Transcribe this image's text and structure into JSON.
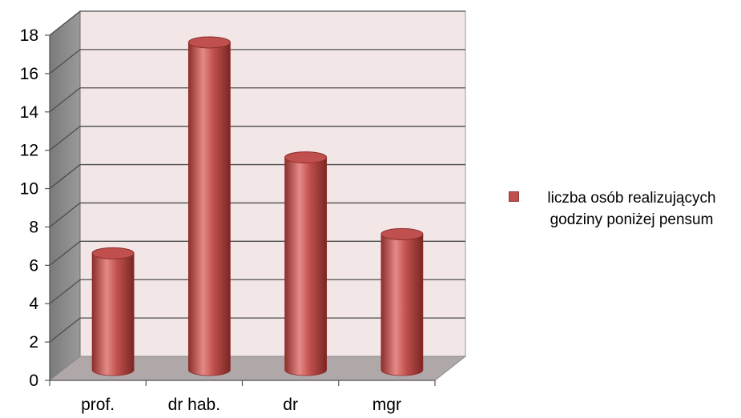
{
  "chart_data": {
    "type": "bar",
    "categories": [
      "prof.",
      "dr hab.",
      "dr",
      "mgr"
    ],
    "series": [
      {
        "name": "liczba osób realizujących godziny poniżej pensum",
        "values": [
          6,
          17,
          11,
          7
        ]
      }
    ],
    "title": "",
    "xlabel": "",
    "ylabel": "",
    "ylim": [
      0,
      18
    ],
    "yticks": [
      "0",
      "2",
      "4",
      "6",
      "8",
      "10",
      "12",
      "14",
      "16",
      "18"
    ],
    "grid": true,
    "legend_position": "right",
    "style": "3d-cylinder",
    "colors": {
      "bar": "#c0504d",
      "bar_dark": "#8c2e2c",
      "bar_light": "#e58a87",
      "wall": "#f2e6e6",
      "side_wall": "#8c8c8c",
      "floor": "#b0a8a8",
      "gridline": "#4d4d4d"
    }
  }
}
